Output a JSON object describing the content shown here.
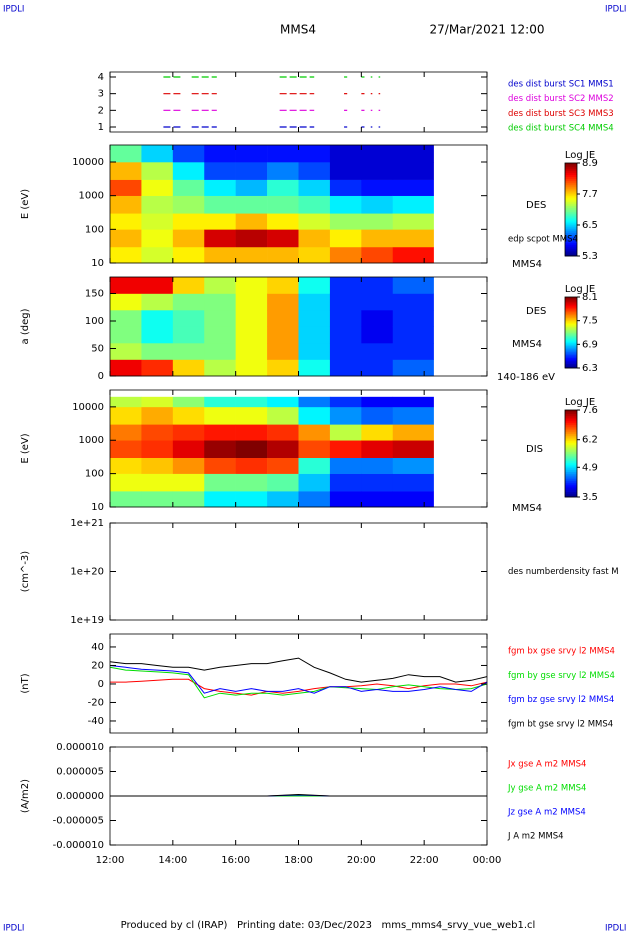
{
  "header": {
    "corner_label": "IPDLI",
    "title": "MMS4",
    "date": "27/Mar/2021 12:00"
  },
  "time_axis": {
    "xlim": [
      12,
      24
    ],
    "xticks": [
      {
        "value": 12,
        "label": "12:00"
      },
      {
        "value": 14,
        "label": "14:00"
      },
      {
        "value": 16,
        "label": "16:00"
      },
      {
        "value": 18,
        "label": "18:00"
      },
      {
        "value": 20,
        "label": "20:00"
      },
      {
        "value": 22,
        "label": "22:00"
      },
      {
        "value": 24,
        "label": "00:00"
      }
    ]
  },
  "chart_data": [
    {
      "type": "segments",
      "ylim": [
        0.7,
        4.3
      ],
      "yticks": [
        1,
        2,
        3,
        4
      ],
      "series": [
        {
          "name": "des dist burst SC1 MMS1",
          "color": "#0000cc",
          "level": 1,
          "intervals": [
            [
              13.7,
              14.3
            ],
            [
              14.6,
              15.4
            ],
            [
              17.4,
              18.5
            ],
            [
              19.45,
              19.55
            ],
            [
              20.0,
              20.1
            ],
            [
              20.3,
              20.35
            ],
            [
              20.55,
              20.6
            ]
          ]
        },
        {
          "name": "des dist burst SC2 MMS2",
          "color": "#dd00dd",
          "level": 2,
          "intervals": [
            [
              13.7,
              14.3
            ],
            [
              14.6,
              15.4
            ],
            [
              17.4,
              18.5
            ],
            [
              19.45,
              19.55
            ],
            [
              20.0,
              20.1
            ],
            [
              20.3,
              20.35
            ],
            [
              20.55,
              20.6
            ]
          ]
        },
        {
          "name": "des dist burst SC3 MMS3",
          "color": "#dd0000",
          "level": 3,
          "intervals": [
            [
              13.7,
              14.3
            ],
            [
              14.6,
              15.4
            ],
            [
              17.4,
              18.5
            ],
            [
              19.45,
              19.55
            ],
            [
              20.0,
              20.1
            ],
            [
              20.3,
              20.35
            ],
            [
              20.55,
              20.6
            ]
          ]
        },
        {
          "name": "des dist burst SC4 MMS4",
          "color": "#00cc00",
          "level": 4,
          "intervals": [
            [
              13.7,
              14.3
            ],
            [
              14.6,
              15.4
            ],
            [
              17.4,
              18.5
            ],
            [
              19.45,
              19.55
            ],
            [
              20.0,
              20.1
            ],
            [
              20.3,
              20.35
            ],
            [
              20.55,
              20.6
            ]
          ]
        }
      ]
    },
    {
      "type": "spectrogram",
      "ylabel": "E (eV)",
      "ylog": true,
      "ylim": [
        10,
        32000
      ],
      "yticks": [
        10,
        100,
        1000,
        10000
      ],
      "annotations": [
        "DES",
        "edp scpot MMS4",
        "MMS4"
      ],
      "colorbar": {
        "title": "Log JE",
        "clim": [
          5.3,
          8.9
        ],
        "cticks": [
          5.3,
          6.5,
          7.7,
          8.9
        ]
      },
      "time_bins": [
        12,
        13,
        14,
        15,
        16,
        17,
        18,
        19,
        20,
        21,
        22.3
      ],
      "y_bins": [
        10,
        30,
        100,
        300,
        1000,
        3000,
        10000,
        32000
      ],
      "values": [
        [
          7.6,
          7.8,
          7.6,
          7.8,
          8.2,
          7.8,
          7.0
        ],
        [
          7.4,
          7.5,
          7.4,
          7.3,
          7.5,
          7.3,
          6.5
        ],
        [
          7.6,
          7.8,
          7.6,
          7.2,
          7.0,
          6.6,
          6.0
        ],
        [
          7.8,
          8.6,
          7.6,
          7.0,
          6.6,
          6.0,
          5.8
        ],
        [
          7.8,
          8.7,
          7.8,
          7.0,
          6.4,
          6.0,
          5.8
        ],
        [
          7.8,
          8.6,
          7.6,
          7.0,
          6.8,
          6.2,
          5.8
        ],
        [
          7.7,
          7.8,
          7.4,
          6.9,
          6.5,
          6.0,
          5.8
        ],
        [
          8.0,
          7.6,
          7.2,
          6.6,
          5.9,
          5.6,
          5.6
        ],
        [
          8.2,
          7.8,
          7.2,
          6.5,
          5.8,
          5.6,
          5.6
        ],
        [
          8.4,
          7.8,
          7.3,
          6.6,
          5.8,
          5.6,
          5.6
        ]
      ]
    },
    {
      "type": "spectrogram",
      "ylabel": "a (deg)",
      "ylim": [
        0,
        180
      ],
      "yticks": [
        0,
        50,
        100,
        150
      ],
      "annotations": [
        "DES",
        "MMS4",
        "140-186 eV"
      ],
      "colorbar": {
        "title": "Log JE",
        "clim": [
          6.3,
          8.1
        ],
        "cticks": [
          6.3,
          6.9,
          7.5,
          8.1
        ]
      },
      "time_bins": [
        12,
        13,
        14,
        15,
        16,
        17,
        18,
        19,
        20,
        21,
        22.3
      ],
      "y_bins": [
        0,
        30,
        60,
        90,
        120,
        150,
        180
      ],
      "values": [
        [
          7.9,
          7.3,
          7.2,
          7.2,
          7.4,
          7.9
        ],
        [
          7.8,
          7.2,
          7.0,
          7.0,
          7.3,
          7.9
        ],
        [
          7.5,
          7.2,
          7.1,
          7.1,
          7.2,
          7.5
        ],
        [
          7.3,
          7.2,
          7.2,
          7.2,
          7.2,
          7.3
        ],
        [
          7.4,
          7.4,
          7.4,
          7.4,
          7.4,
          7.4
        ],
        [
          7.5,
          7.6,
          7.6,
          7.6,
          7.6,
          7.5
        ],
        [
          7.0,
          6.9,
          6.9,
          6.9,
          6.9,
          7.0
        ],
        [
          6.6,
          6.6,
          6.6,
          6.6,
          6.6,
          6.6
        ],
        [
          6.6,
          6.6,
          6.5,
          6.5,
          6.6,
          6.6
        ],
        [
          6.7,
          6.6,
          6.6,
          6.6,
          6.6,
          6.7
        ]
      ]
    },
    {
      "type": "spectrogram",
      "ylabel": "E (eV)",
      "ylog": true,
      "ylim": [
        10,
        32000
      ],
      "yticks": [
        10,
        100,
        1000,
        10000
      ],
      "annotations": [
        "DIS",
        "MMS4"
      ],
      "colorbar": {
        "title": "Log JE",
        "clim": [
          3.5,
          7.6
        ],
        "cticks": [
          3.5,
          4.9,
          6.2,
          7.6
        ]
      },
      "time_bins": [
        12,
        13,
        14,
        15,
        16,
        17,
        18,
        19,
        20,
        21,
        22.3
      ],
      "y_bins": [
        10,
        30,
        100,
        300,
        1000,
        3000,
        10000,
        20000
      ],
      "values": [
        [
          5.5,
          6.0,
          6.2,
          6.8,
          6.6,
          6.2,
          5.8
        ],
        [
          5.5,
          6.0,
          6.3,
          6.9,
          6.8,
          6.4,
          5.9
        ],
        [
          5.5,
          6.0,
          6.5,
          7.2,
          6.9,
          6.2,
          5.6
        ],
        [
          5.0,
          5.5,
          6.8,
          7.5,
          7.0,
          6.0,
          5.2
        ],
        [
          5.0,
          5.5,
          6.9,
          7.6,
          7.0,
          6.0,
          5.2
        ],
        [
          4.8,
          5.4,
          6.8,
          7.4,
          6.9,
          5.8,
          5.0
        ],
        [
          4.5,
          4.8,
          5.2,
          6.8,
          6.5,
          5.0,
          4.5
        ],
        [
          4.0,
          4.2,
          4.5,
          7.0,
          5.8,
          4.6,
          4.2
        ],
        [
          4.0,
          4.2,
          4.5,
          7.2,
          6.2,
          4.4,
          4.0
        ],
        [
          4.0,
          4.2,
          4.6,
          7.3,
          6.4,
          4.5,
          4.0
        ]
      ]
    },
    {
      "type": "line",
      "ylabel": "(cm^-3)",
      "ylog": true,
      "ylim": [
        1e+19,
        1e+21
      ],
      "yticks": [
        {
          "value": 1e+19,
          "label": "1e+19"
        },
        {
          "value": 1e+20,
          "label": "1e+20"
        },
        {
          "value": 1e+21,
          "label": "1e+21"
        }
      ],
      "x": [],
      "series": [
        {
          "name": "des numberdensity fast M",
          "color": "#000000",
          "values": []
        }
      ]
    },
    {
      "type": "line",
      "ylabel": "(nT)",
      "ylim": [
        -53,
        54
      ],
      "yticks": [
        -40,
        -20,
        0,
        20,
        40
      ],
      "x": [
        12,
        12.5,
        13,
        13.5,
        14,
        14.5,
        15,
        15.5,
        16,
        16.5,
        17,
        17.5,
        18,
        18.5,
        19,
        19.5,
        20,
        20.5,
        21,
        21.5,
        22,
        22.5,
        23,
        23.5,
        24
      ],
      "series": [
        {
          "name": "fgm bx gse srvy l2 MMS4",
          "color": "#ff0000",
          "values": [
            2,
            2,
            3,
            4,
            5,
            5,
            -5,
            -8,
            -10,
            -12,
            -8,
            -10,
            -8,
            -5,
            -3,
            -3,
            -2,
            0,
            -2,
            -5,
            -2,
            0,
            0,
            -2,
            2
          ]
        },
        {
          "name": "fgm by gse srvy l2 MMS4",
          "color": "#00dd00",
          "values": [
            18,
            15,
            14,
            13,
            12,
            10,
            -15,
            -10,
            -12,
            -10,
            -10,
            -12,
            -10,
            -8,
            -3,
            -4,
            -5,
            -6,
            -3,
            -1,
            -3,
            -5,
            -6,
            -5,
            0
          ]
        },
        {
          "name": "fgm bz gse srvy l2 MMS4",
          "color": "#0000ff",
          "values": [
            20,
            18,
            16,
            15,
            14,
            12,
            -10,
            -5,
            -8,
            -5,
            -8,
            -8,
            -5,
            -10,
            -3,
            -3,
            -8,
            -6,
            -8,
            -8,
            -6,
            -3,
            -6,
            -8,
            2
          ]
        },
        {
          "name": "fgm bt gse srvy l2 MMS4",
          "color": "#000000",
          "values": [
            24,
            22,
            22,
            20,
            18,
            18,
            15,
            18,
            20,
            22,
            22,
            25,
            28,
            18,
            12,
            5,
            2,
            4,
            6,
            10,
            8,
            8,
            2,
            4,
            8
          ]
        }
      ]
    },
    {
      "type": "line",
      "ylabel": "(A/m2)",
      "ylim": [
        -1e-05,
        1e-05
      ],
      "yticks": [
        {
          "value": -1e-05,
          "label": "-0.000010"
        },
        {
          "value": -5e-06,
          "label": "-0.000005"
        },
        {
          "value": 0,
          "label": "0.000000"
        },
        {
          "value": 5e-06,
          "label": "0.000005"
        },
        {
          "value": 1e-05,
          "label": "0.000010"
        }
      ],
      "x": [
        12,
        13,
        14,
        15,
        16,
        17,
        18,
        19,
        20,
        21,
        22,
        23,
        24
      ],
      "series": [
        {
          "name": "Jx gse A m2 MMS4",
          "color": "#ff0000",
          "values": [
            0,
            0,
            0,
            0,
            0,
            0,
            0,
            0,
            0,
            0,
            0,
            0,
            0
          ]
        },
        {
          "name": "Jy gse A m2 MMS4",
          "color": "#00dd00",
          "values": [
            0,
            0,
            0,
            0,
            0,
            0,
            0,
            0,
            0,
            0,
            0,
            0,
            0
          ]
        },
        {
          "name": "Jz gse A m2 MMS4",
          "color": "#0000ff",
          "values": [
            0,
            0,
            0,
            0,
            0,
            0,
            2e-07,
            0,
            0,
            0,
            0,
            0,
            0
          ]
        },
        {
          "name": "J A m2 MMS4",
          "color": "#000000",
          "values": [
            0,
            0,
            0,
            0,
            0,
            0,
            3e-07,
            0,
            0,
            0,
            0,
            0,
            0
          ]
        }
      ]
    }
  ],
  "footer": "Produced by cl (IRAP)   Printing date: 03/Dec/2023   mms_mms4_srvy_vue_web1.cl"
}
